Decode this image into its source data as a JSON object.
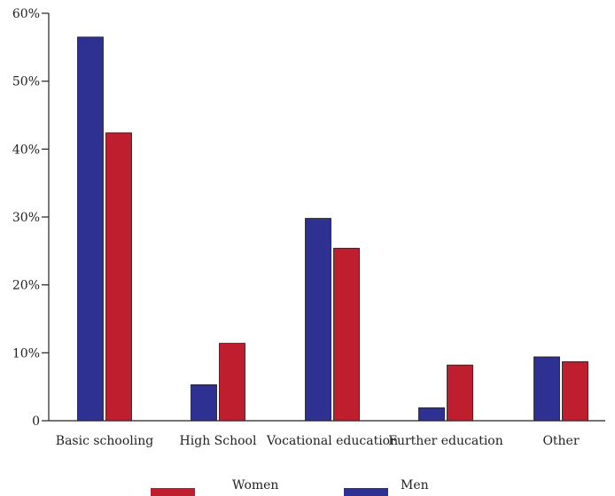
{
  "chart_data": {
    "type": "bar",
    "title": "",
    "xlabel": "",
    "ylabel": "",
    "ylim": [
      0,
      60
    ],
    "y_ticks": [
      0,
      10,
      20,
      30,
      40,
      50,
      60
    ],
    "y_tick_labels": [
      "0",
      "10%",
      "20%",
      "30%",
      "40%",
      "50%",
      "60%"
    ],
    "grid": false,
    "legend_position": "bottom",
    "categories": [
      "Basic schooling",
      "High School",
      "Vocational education",
      "Further education",
      "Other"
    ],
    "series": [
      {
        "name": "Men",
        "color": "#2e3192",
        "values": [
          56.5,
          5.3,
          29.8,
          1.9,
          9.4
        ]
      },
      {
        "name": "Women",
        "color": "#be1e2d",
        "values": [
          42.4,
          11.4,
          25.4,
          8.2,
          8.7
        ]
      }
    ],
    "legend": [
      {
        "name": "Women",
        "color": "#be1e2d"
      },
      {
        "name": "Men",
        "color": "#2e3192"
      }
    ]
  }
}
